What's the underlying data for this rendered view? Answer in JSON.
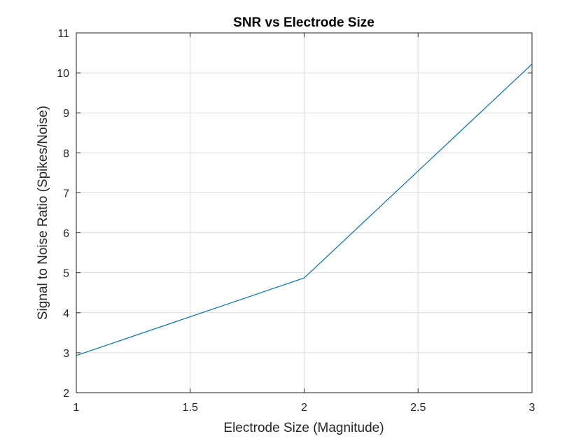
{
  "chart_data": {
    "type": "line",
    "title": "SNR vs Electrode Size",
    "xlabel": "Electrode Size (Magnitude)",
    "ylabel": "Signal to Noise Ratio (Spikes/Noise)",
    "xlim": [
      1,
      3
    ],
    "ylim": [
      2,
      11
    ],
    "xticks": [
      "1",
      "1.5",
      "2",
      "2.5",
      "3"
    ],
    "yticks": [
      "2",
      "3",
      "4",
      "5",
      "6",
      "7",
      "8",
      "9",
      "10",
      "11"
    ],
    "grid": true,
    "legend": "none",
    "series": [
      {
        "color": "#0072BD",
        "x": [
          1,
          2,
          3
        ],
        "y": [
          2.93,
          4.87,
          10.22
        ]
      }
    ]
  }
}
